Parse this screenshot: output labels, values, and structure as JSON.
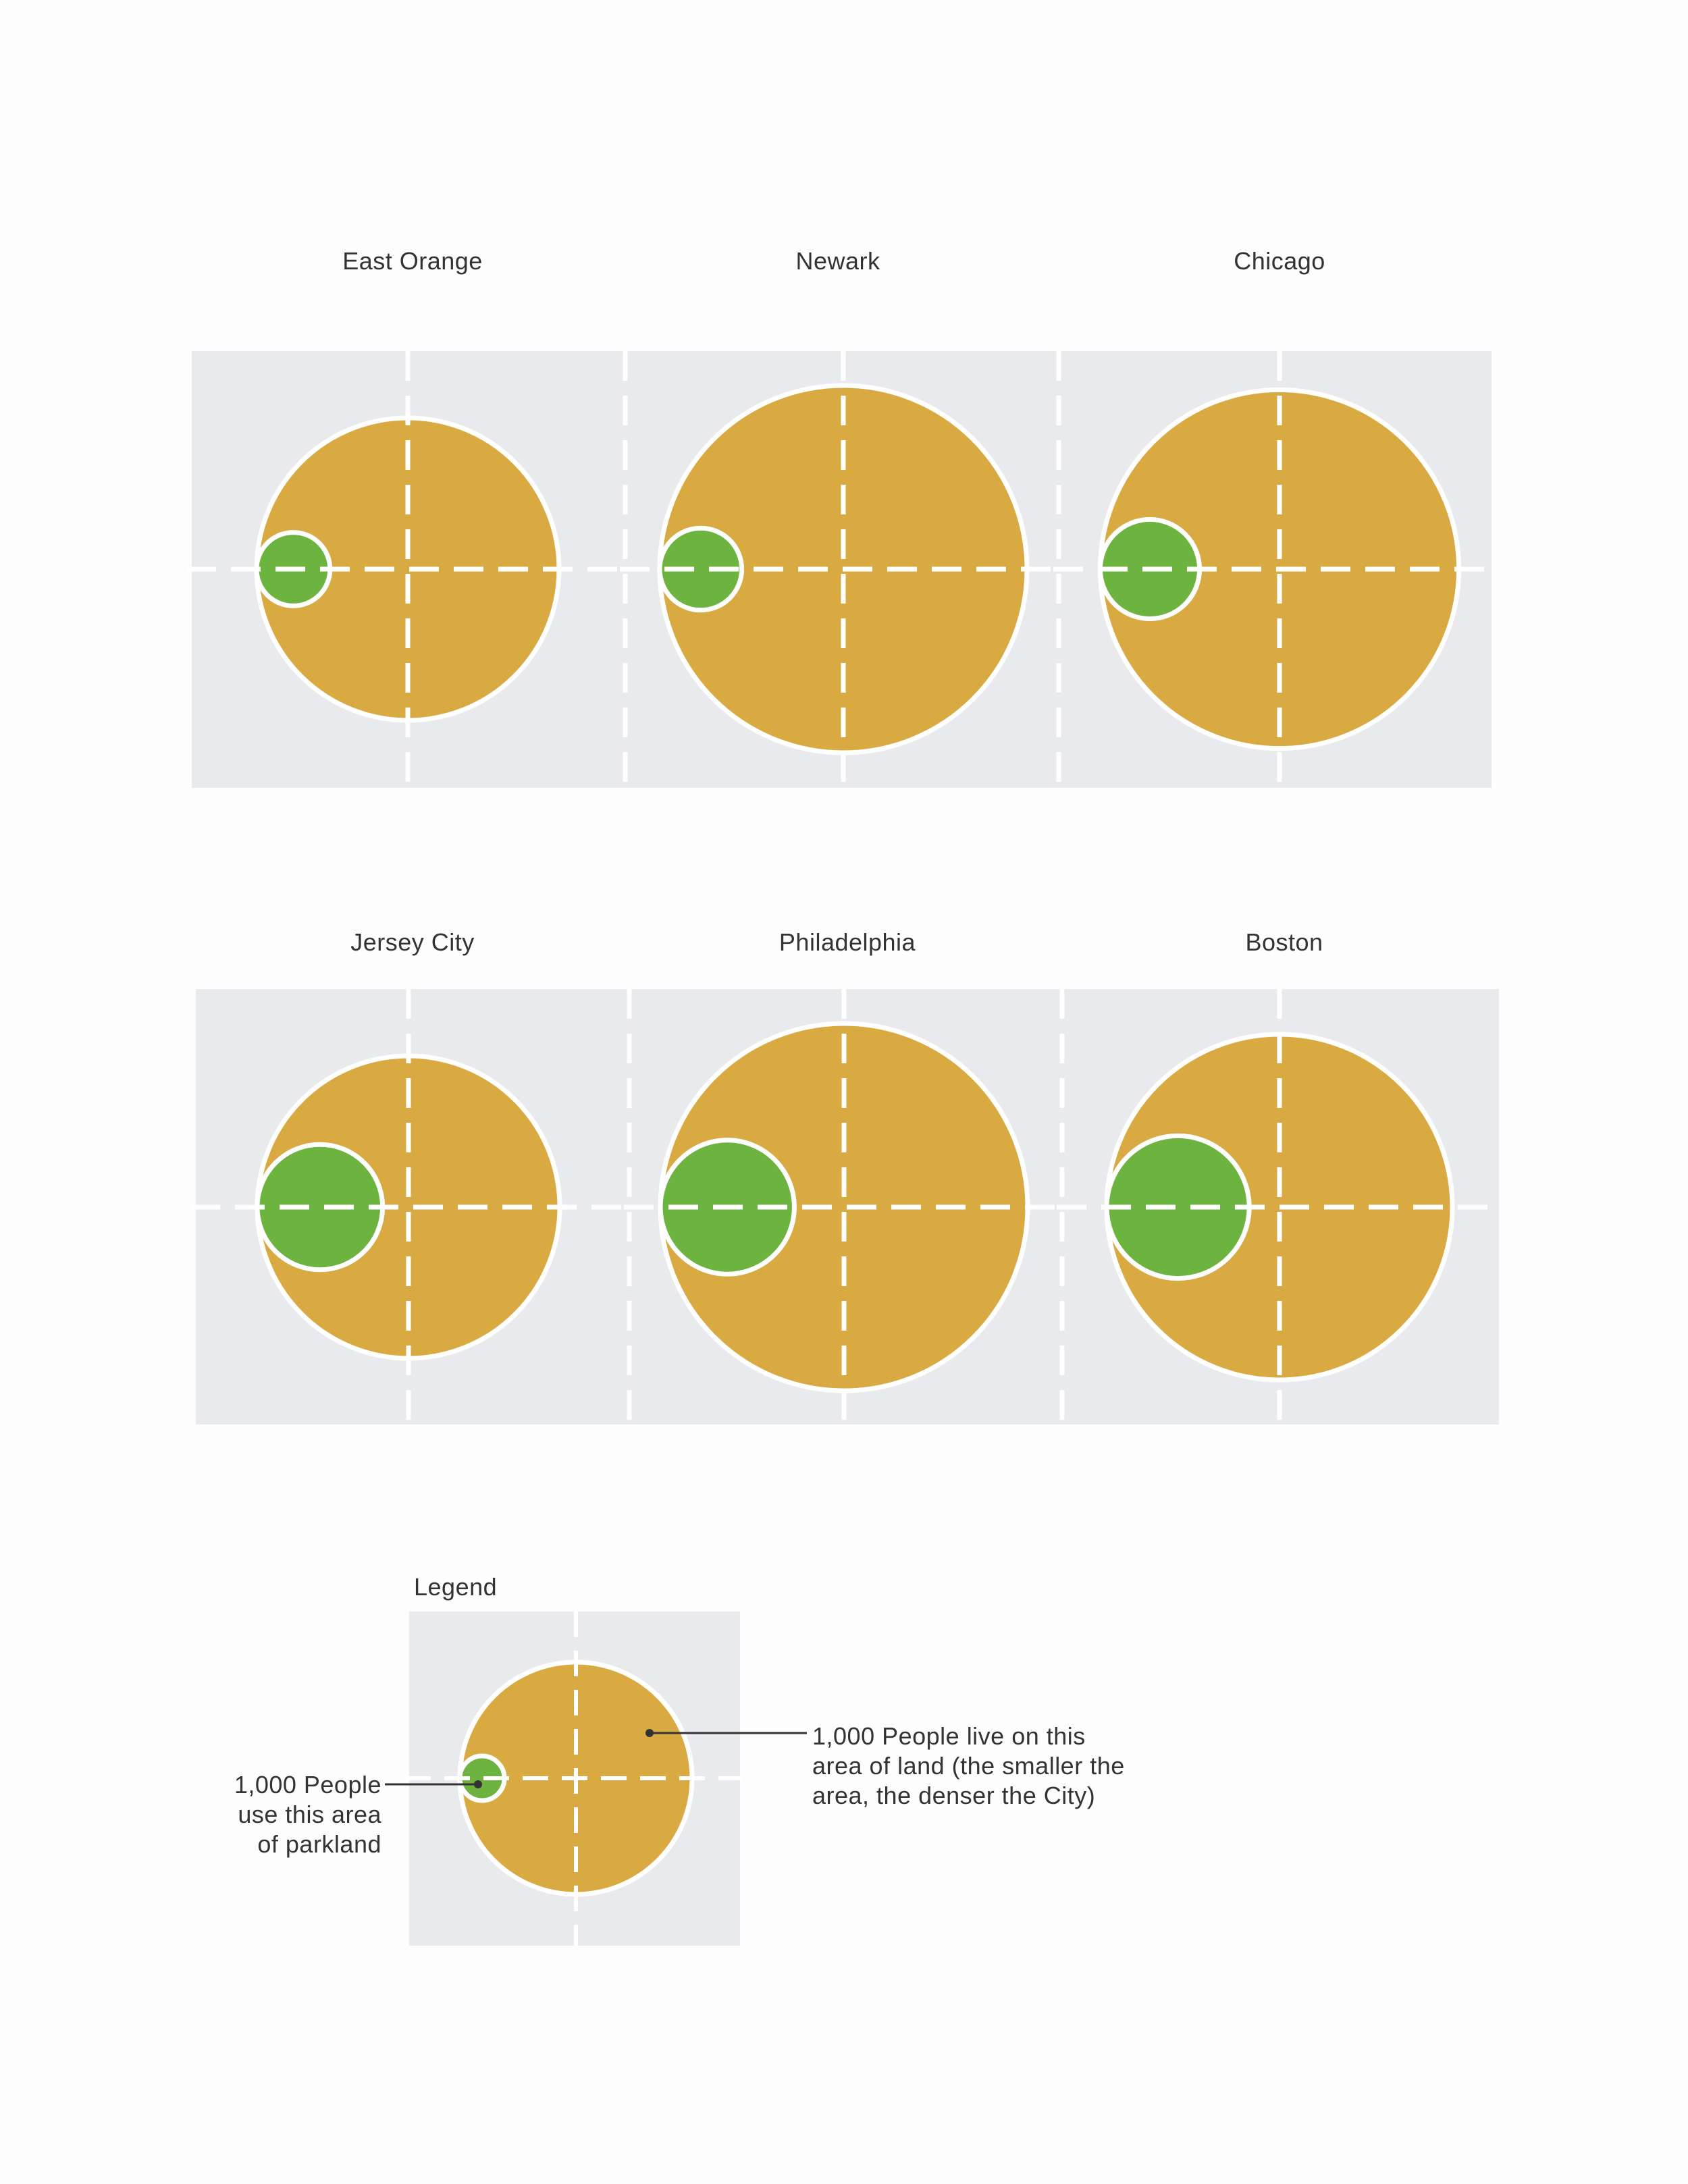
{
  "colors": {
    "panel": "#e8eaed",
    "land": "#d9aa42",
    "park": "#6db33f",
    "stroke": "#ffffff",
    "text": "#333333"
  },
  "cities": [
    {
      "name": "East Orange",
      "land_radius_ratio": 0.7,
      "park_radius_ratio": 0.17
    },
    {
      "name": "Newark",
      "land_radius_ratio": 0.85,
      "park_radius_ratio": 0.19
    },
    {
      "name": "Chicago",
      "land_radius_ratio": 0.83,
      "park_radius_ratio": 0.23
    },
    {
      "name": "Jersey City",
      "land_radius_ratio": 0.7,
      "park_radius_ratio": 0.29
    },
    {
      "name": "Philadelphia",
      "land_radius_ratio": 0.85,
      "park_radius_ratio": 0.31
    },
    {
      "name": "Boston",
      "land_radius_ratio": 0.8,
      "park_radius_ratio": 0.33
    }
  ],
  "legend": {
    "title": "Legend",
    "park_label": [
      "1,000 People",
      "use  this area",
      "of parkland"
    ],
    "land_label": [
      "1,000 People live on this",
      "area of land (the smaller the",
      "area, the denser the City)"
    ]
  }
}
